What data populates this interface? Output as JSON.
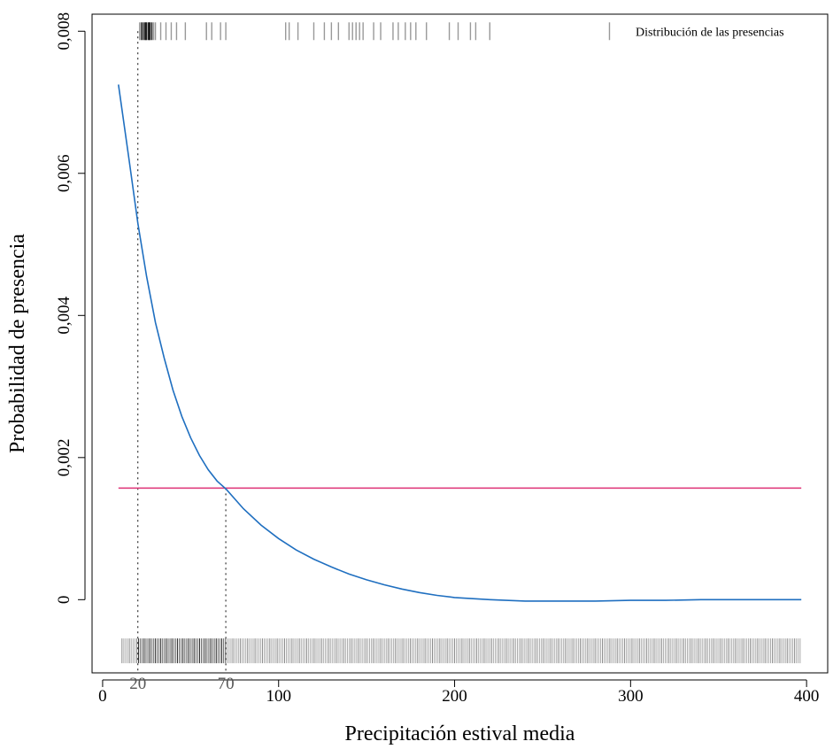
{
  "chart_data": {
    "type": "line",
    "xlabel": "Precipitación estival media",
    "ylabel": "Probabilidad de presencia",
    "xlim": [
      -6,
      412
    ],
    "ylim": [
      -0.00103,
      0.00824
    ],
    "x_ticks": [
      {
        "value": 0,
        "label": "0"
      },
      {
        "value": 100,
        "label": "100"
      },
      {
        "value": 200,
        "label": "200"
      },
      {
        "value": 300,
        "label": "300"
      },
      {
        "value": 400,
        "label": "400"
      }
    ],
    "x_ref_ticks": [
      {
        "value": 20,
        "label": "20"
      },
      {
        "value": 70,
        "label": "70"
      }
    ],
    "y_ticks": [
      {
        "value": 0,
        "label": "0"
      },
      {
        "value": 0.002,
        "label": "0,002"
      },
      {
        "value": 0.004,
        "label": "0,004"
      },
      {
        "value": 0.006,
        "label": "0,006"
      },
      {
        "value": 0.008,
        "label": "0,008"
      }
    ],
    "grid": false,
    "series": [
      {
        "color": "#1f6fc0",
        "x": [
          9,
          15,
          20,
          25,
          30,
          35,
          40,
          45,
          50,
          55,
          60,
          65,
          70,
          80,
          90,
          100,
          110,
          120,
          130,
          140,
          150,
          160,
          170,
          180,
          190,
          200,
          220,
          240,
          260,
          280,
          300,
          320,
          340,
          360,
          380,
          397
        ],
        "y": [
          0.00725,
          0.0062,
          0.0053,
          0.00455,
          0.0039,
          0.0034,
          0.00295,
          0.00258,
          0.00228,
          0.00203,
          0.00183,
          0.00167,
          0.00156,
          0.00128,
          0.00105,
          0.00086,
          0.0007,
          0.00057,
          0.00046,
          0.00036,
          0.00028,
          0.00021,
          0.00015,
          0.0001,
          6e-05,
          3e-05,
          0.0,
          -2e-05,
          -2e-05,
          -2e-05,
          -1e-05,
          -1e-05,
          0.0,
          0.0,
          0.0,
          0.0
        ]
      }
    ],
    "threshold": {
      "y": 0.00157,
      "x_start": 9,
      "x_end": 397,
      "color": "#e0407f"
    },
    "reference_lines": [
      {
        "x": 20,
        "y_top": 0.008
      },
      {
        "x": 70,
        "y_top": 0.00157
      }
    ],
    "presence_rug": {
      "y": 0.008,
      "label": "Distribución de las presencias",
      "values": [
        21,
        22,
        23,
        24,
        24.5,
        25,
        26,
        26.5,
        27,
        28,
        29,
        30,
        33,
        36,
        39,
        42,
        47,
        59,
        62,
        67,
        70,
        104,
        106,
        111,
        120,
        126,
        130,
        134,
        140,
        142,
        144,
        146,
        148,
        154,
        158,
        165,
        168,
        172,
        175,
        178,
        184,
        197,
        202,
        209,
        212,
        220,
        288
      ]
    },
    "absence_rug": {
      "y": -0.00072,
      "x_from": 11,
      "x_to": 397,
      "step": 1.05,
      "dense_from": 20,
      "dense_to": 70
    }
  }
}
